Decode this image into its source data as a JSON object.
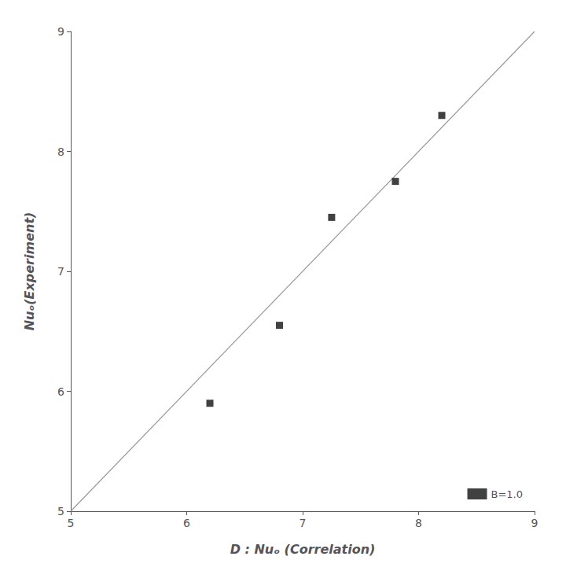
{
  "chart_data": {
    "type": "scatter",
    "xlabel": "D : Nuₒ (Correlation)",
    "ylabel": "Nuₒ(Experiment)",
    "xlim": [
      5,
      9
    ],
    "ylim": [
      5,
      9
    ],
    "xticks": [
      5,
      6,
      7,
      8,
      9
    ],
    "yticks": [
      5,
      6,
      7,
      8,
      9
    ],
    "grid": false,
    "legend": "lower right",
    "series": [
      {
        "type": "line",
        "color": "#999999",
        "x": [
          5,
          9
        ],
        "values": [
          5,
          9
        ]
      },
      {
        "type": "scatter",
        "name": "B=1.0",
        "color": "#111111",
        "marker": "square",
        "x": [
          6.2,
          6.8,
          7.25,
          7.8,
          8.2
        ],
        "values": [
          5.9,
          6.55,
          7.45,
          7.75,
          8.3
        ]
      }
    ]
  }
}
